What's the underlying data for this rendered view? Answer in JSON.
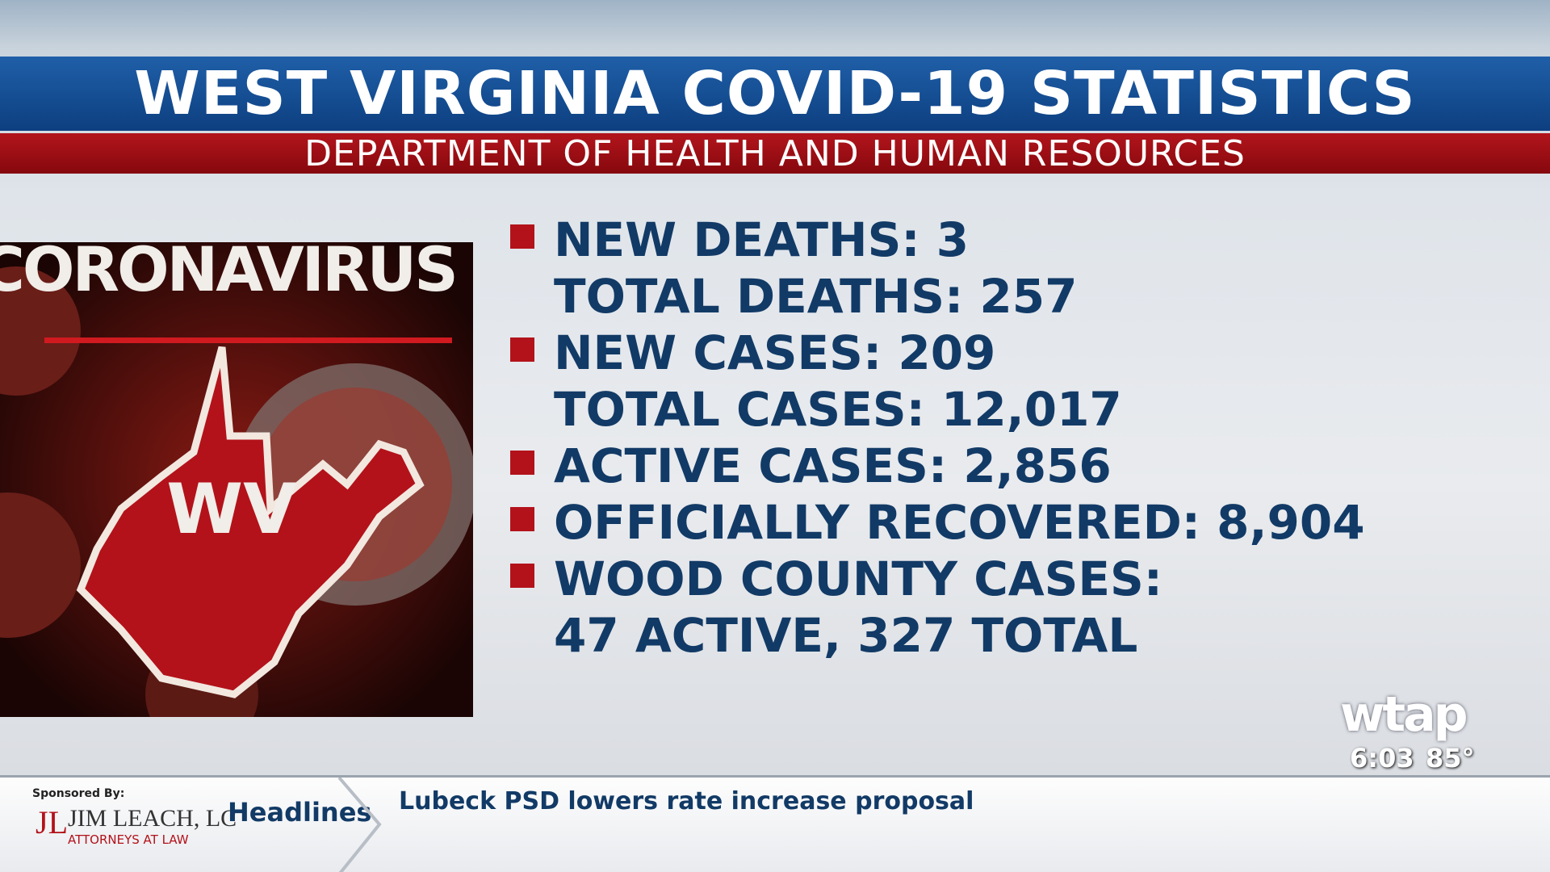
{
  "header": {
    "title": "WEST VIRGINIA COVID-19 STATISTICS",
    "subtitle": "DEPARTMENT OF HEALTH AND HUMAN RESOURCES"
  },
  "image": {
    "label": "CORONAVIRUS",
    "state": "WV"
  },
  "stats": [
    {
      "lines": [
        "NEW DEATHS: 3",
        "TOTAL DEATHS: 257"
      ]
    },
    {
      "lines": [
        "NEW CASES: 209",
        "TOTAL CASES: 12,017"
      ]
    },
    {
      "lines": [
        "ACTIVE CASES: 2,856"
      ]
    },
    {
      "lines": [
        "OFFICIALLY RECOVERED: 8,904"
      ]
    },
    {
      "lines": [
        "WOOD COUNTY CASES:",
        "47 ACTIVE, 327 TOTAL"
      ]
    }
  ],
  "station": {
    "logo": "wtap",
    "time": "6:03",
    "temperature": "85°"
  },
  "ticker": {
    "sponsor_label": "Sponsored By:",
    "sponsor_logo": "JL",
    "sponsor_name": "JIM LEACH, LC",
    "sponsor_tagline": "ATTORNEYS AT LAW",
    "section": "Headlines",
    "headline": "Lubeck PSD lowers rate increase proposal"
  }
}
